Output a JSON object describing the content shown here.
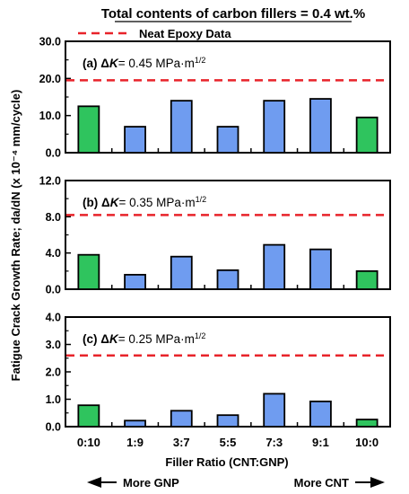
{
  "chart_data": {
    "type": "bar",
    "title": "Total contents of carbon fillers = 0.4 wt.%",
    "legend": {
      "label": "Neat Epoxy Data",
      "color": "#e8232a",
      "style": "dashed",
      "placement": "top"
    },
    "ylabel": "Fatigue Crack Growth Rate; da/dN (x 10⁻⁴ mm/cycle)",
    "xlabel": "Filler Ratio (CNT:GNP)",
    "categories": [
      "0:10",
      "1:9",
      "3:7",
      "5:5",
      "7:3",
      "9:1",
      "10:0"
    ],
    "bar_colors": [
      "#2fc45e",
      "#6f9cf0",
      "#6f9cf0",
      "#6f9cf0",
      "#6f9cf0",
      "#6f9cf0",
      "#2fc45e"
    ],
    "arrows": {
      "left": "More GNP",
      "right": "More CNT"
    },
    "panels": [
      {
        "label_prefix": "(a) Δ",
        "label_var": "K",
        "label_value": "= 0.45 MPa·m",
        "label_exp": "1/2",
        "values": [
          12.5,
          7.0,
          14.0,
          7.0,
          14.0,
          14.5,
          9.5
        ],
        "neat_epoxy": 19.5,
        "ylim": [
          0,
          30
        ],
        "yticks": [
          "0.0",
          "10.0",
          "20.0",
          "30.0"
        ],
        "ytick_values": [
          0,
          10,
          20,
          30
        ]
      },
      {
        "label_prefix": "(b) Δ",
        "label_var": "K",
        "label_value": "= 0.35 MPa·m",
        "label_exp": "1/2",
        "values": [
          3.8,
          1.6,
          3.6,
          2.1,
          4.9,
          4.4,
          2.0
        ],
        "neat_epoxy": 8.2,
        "ylim": [
          0,
          12
        ],
        "yticks": [
          "0.0",
          "4.0",
          "8.0",
          "12.0"
        ],
        "ytick_values": [
          0,
          4,
          8,
          12
        ]
      },
      {
        "label_prefix": "(c) Δ",
        "label_var": "K",
        "label_value": "= 0.25 MPa·m",
        "label_exp": "1/2",
        "values": [
          0.78,
          0.22,
          0.58,
          0.42,
          1.2,
          0.92,
          0.26
        ],
        "neat_epoxy": 2.6,
        "ylim": [
          0,
          4
        ],
        "yticks": [
          "0.0",
          "1.0",
          "2.0",
          "3.0",
          "4.0"
        ],
        "ytick_values": [
          0,
          1,
          2,
          3,
          4
        ]
      }
    ]
  }
}
